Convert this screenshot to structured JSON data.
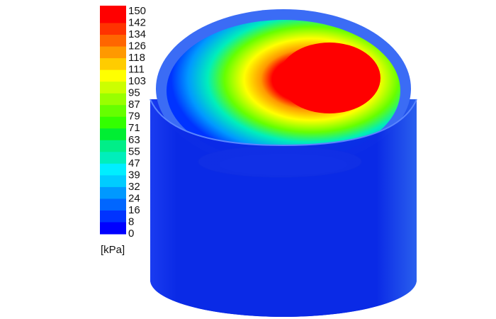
{
  "legend": {
    "levels": [
      150,
      142,
      134,
      126,
      118,
      111,
      103,
      95,
      87,
      79,
      71,
      63,
      55,
      47,
      39,
      32,
      24,
      16,
      8,
      0
    ],
    "colors": [
      "#ff0000",
      "#ff3300",
      "#ff6600",
      "#ff9900",
      "#ffcc00",
      "#ffff00",
      "#ccff00",
      "#99ff00",
      "#66ff00",
      "#33ff00",
      "#00ee33",
      "#00ee88",
      "#00eebb",
      "#00eeff",
      "#00ccff",
      "#0099ff",
      "#0066ff",
      "#0033ff",
      "#0000ff"
    ],
    "unit": "[kPa]"
  }
}
